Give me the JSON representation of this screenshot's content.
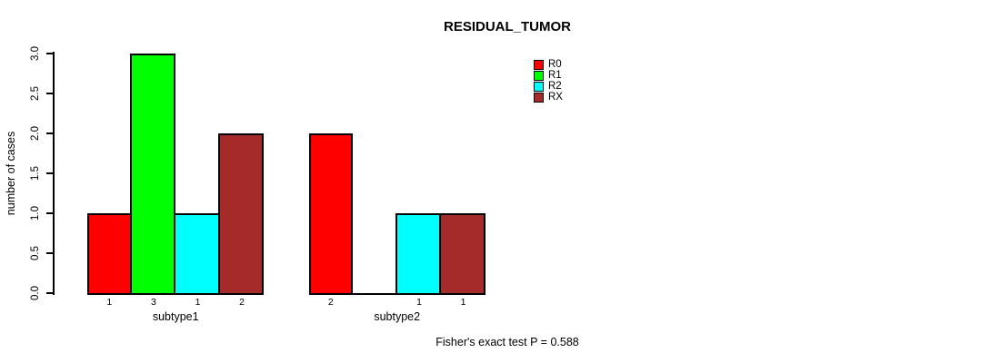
{
  "chart_data": {
    "type": "bar",
    "title": "RESIDUAL_TUMOR",
    "ylabel": "number of cases",
    "xlabel": "",
    "ylim": [
      0,
      3
    ],
    "yticks": [
      0.0,
      0.5,
      1.0,
      1.5,
      2.0,
      2.5,
      3.0
    ],
    "ytick_labels": [
      "0.0",
      "0.5",
      "1.0",
      "1.5",
      "2.0",
      "2.5",
      "3.0"
    ],
    "categories": [
      "subtype1",
      "subtype2"
    ],
    "series": [
      {
        "name": "R0",
        "color": "#FF0000",
        "values": [
          1,
          2
        ]
      },
      {
        "name": "R1",
        "color": "#00FF00",
        "values": [
          3,
          0
        ]
      },
      {
        "name": "R2",
        "color": "#00FFFF",
        "values": [
          1,
          1
        ]
      },
      {
        "name": "RX",
        "color": "#A52A2A",
        "values": [
          2,
          1
        ]
      }
    ],
    "bar_value_labels": [
      [
        "1",
        "3",
        "1",
        "2"
      ],
      [
        "2",
        "",
        "1",
        "1"
      ]
    ],
    "legend_position": "top-right",
    "grid": false,
    "background": "#FFFFFF",
    "footnote": "Fisher's exact test P = 0.588"
  }
}
